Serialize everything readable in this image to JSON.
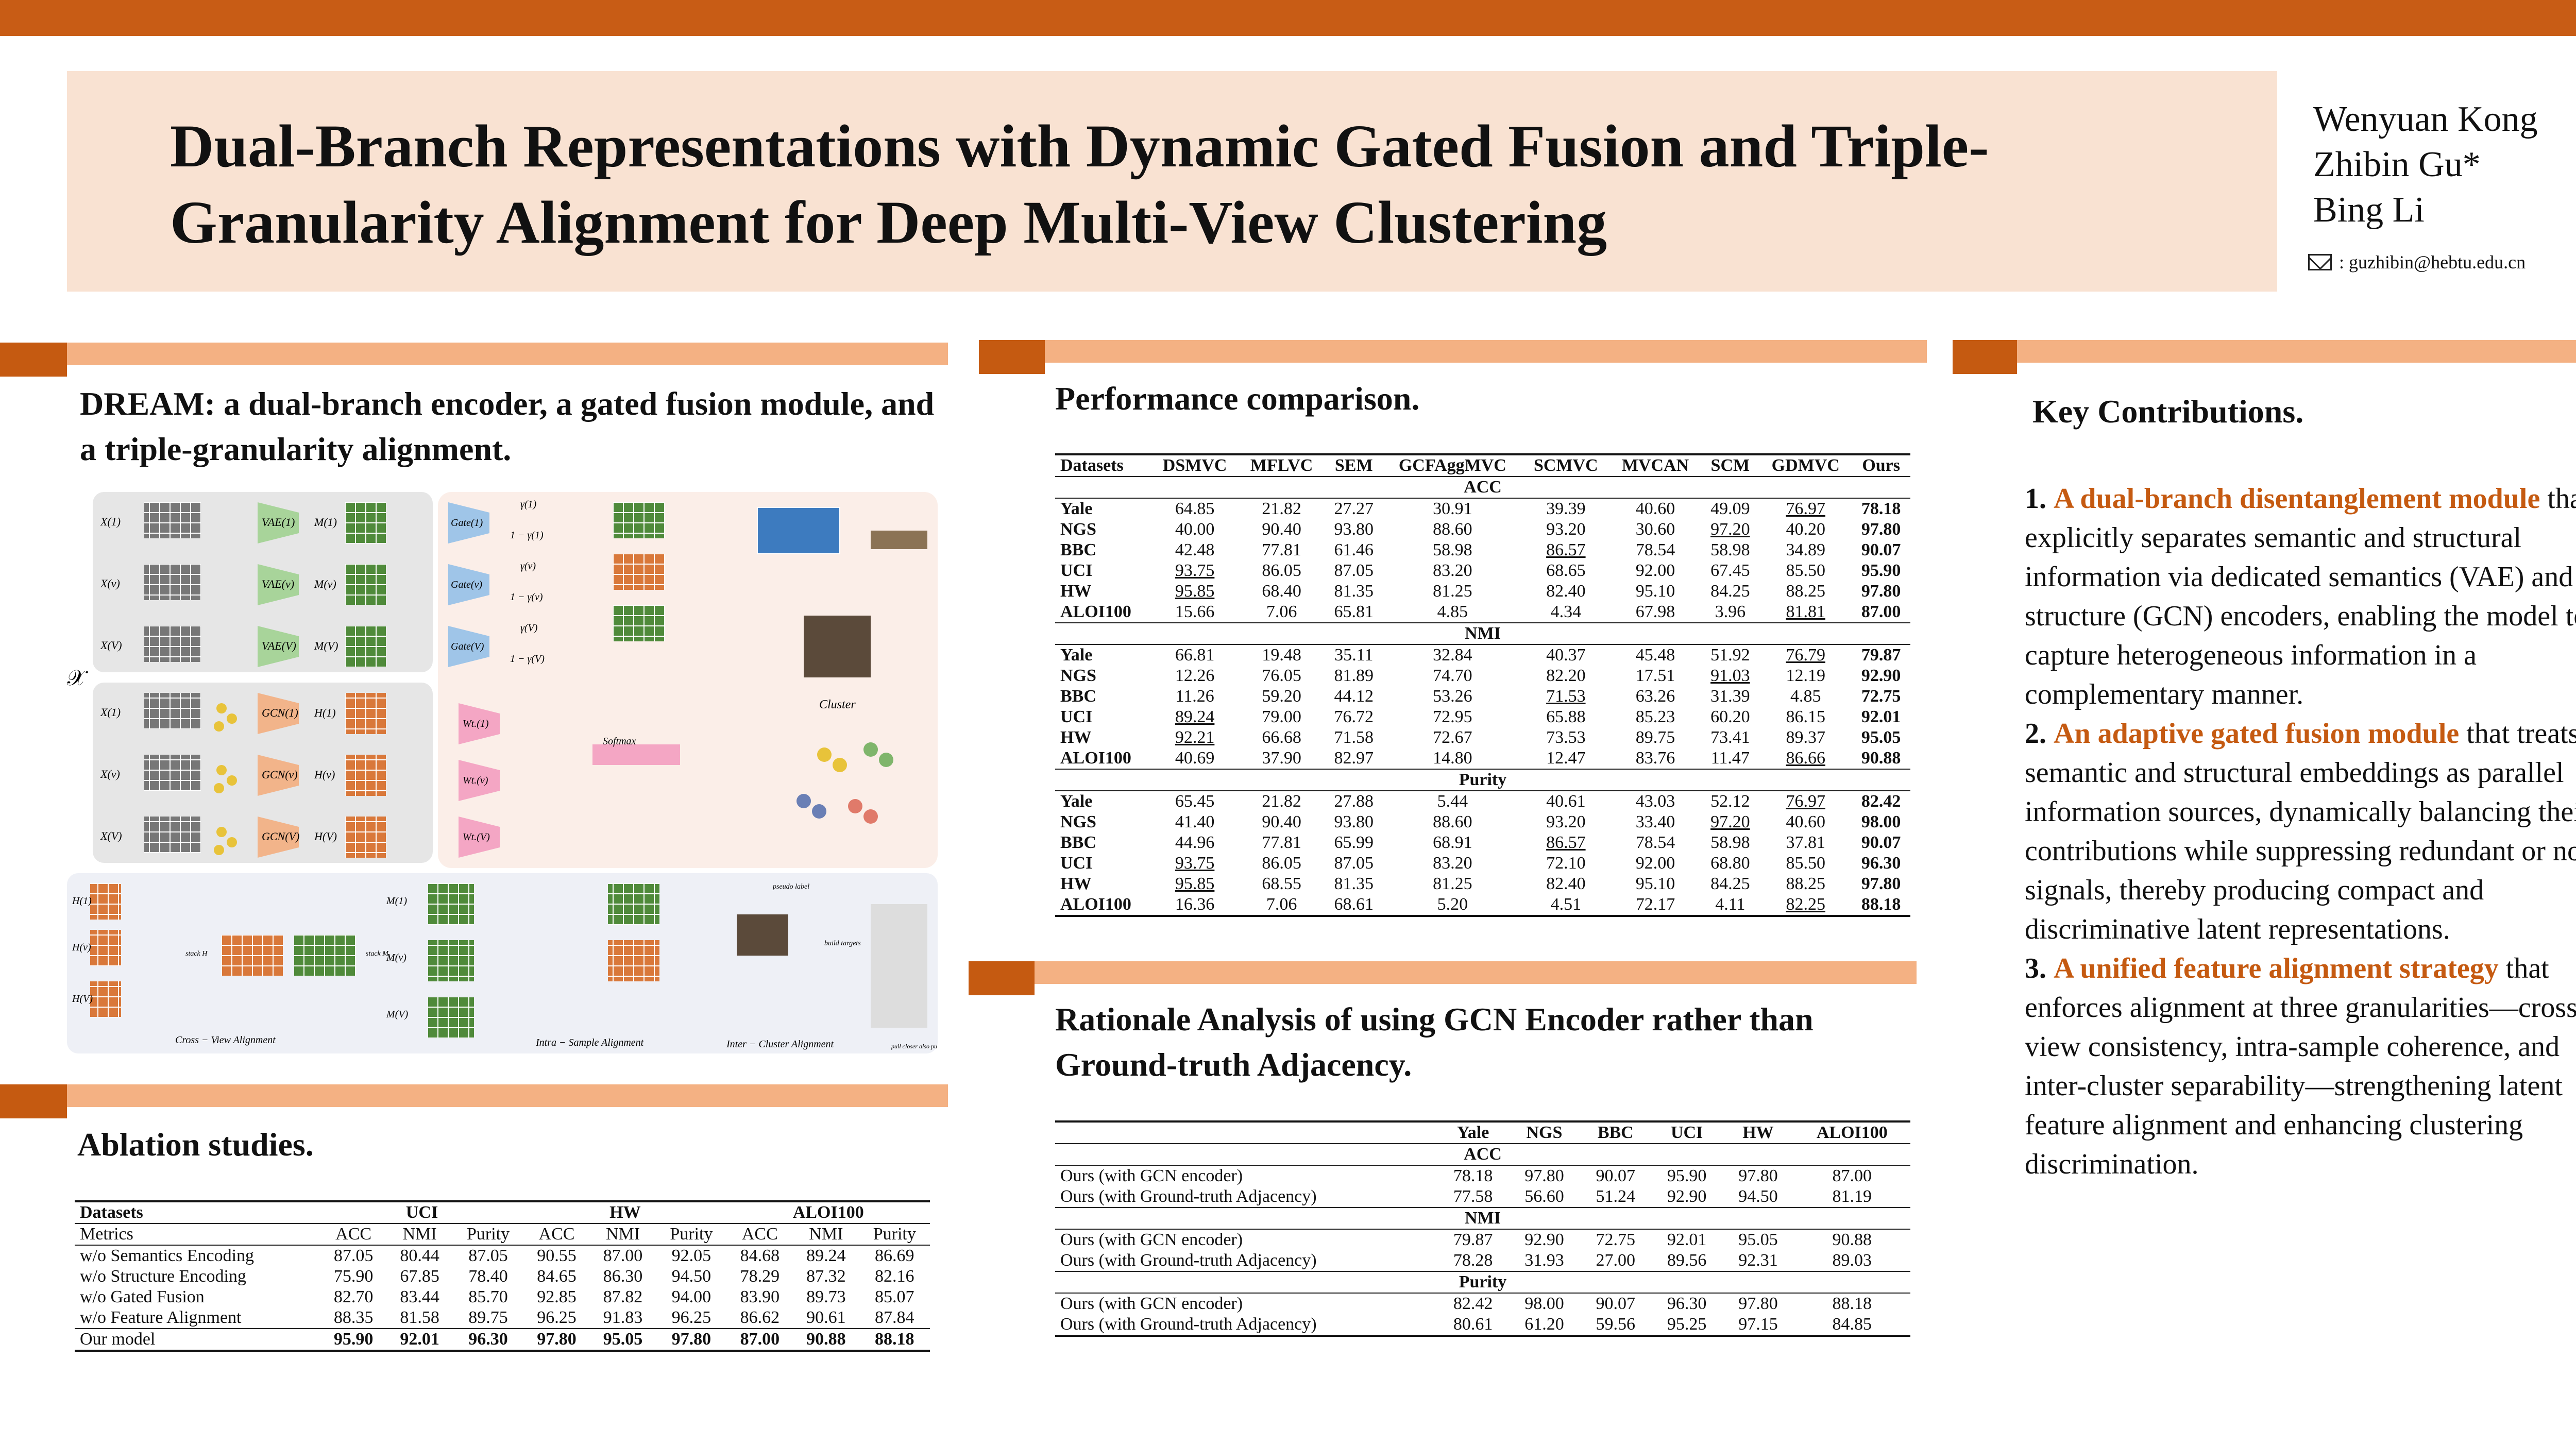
{
  "title": "Dual-Branch Representations with Dynamic Gated Fusion and Triple-Granularity Alignment for Deep Multi-View Clustering",
  "authors": [
    "Wenyuan Kong",
    "Zhibin Gu*",
    "Bing Li"
  ],
  "email": ": guzhibin@hebtu.edu.cn",
  "method": {
    "heading": "DREAM: a dual-branch encoder, a gated fusion module, and a triple-granularity alignment.",
    "figure": {
      "x_label": "𝒳",
      "views": [
        "X(1)",
        "X(v)",
        "X(V)"
      ],
      "vae": [
        "VAE(1)",
        "VAE(v)",
        "VAE(V)"
      ],
      "gcn": [
        "GCN(1)",
        "GCN(v)",
        "GCN(V)"
      ],
      "m": [
        "M(1)",
        "M(v)",
        "M(V)"
      ],
      "h": [
        "H(1)",
        "H(v)",
        "H(V)"
      ],
      "gates": [
        "Gate(1)",
        "Gate(v)",
        "Gate(V)"
      ],
      "wts": [
        "Wt.(1)",
        "Wt.(v)",
        "Wt.(V)"
      ],
      "gamma": [
        "γ(1)",
        "1 − γ(1)",
        "γ(v)",
        "1 − γ(v)",
        "γ(V)",
        "1 − γ(V)"
      ],
      "softmax": "Softmax",
      "cluster": "Cluster",
      "cross_view": "Cross − View Alignment",
      "intra_sample": "Intra − Sample Alignment",
      "inter_cluster": "Inter − Cluster Alignment",
      "pseudo_label": "pseudo label",
      "stack_h": "stack H",
      "stack_m": "stack M",
      "build_targets": "build targets",
      "pull_push": "pull closer also push apart"
    }
  },
  "ablation": {
    "heading": "Ablation studies.",
    "groups": [
      "UCI",
      "HW",
      "ALOI100"
    ],
    "metrics": [
      "ACC",
      "NMI",
      "Purity",
      "ACC",
      "NMI",
      "Purity",
      "ACC",
      "NMI",
      "Purity"
    ],
    "rows": [
      {
        "name": "w/o Semantics Encoding",
        "v": [
          "87.05",
          "80.44",
          "87.05",
          "90.55",
          "87.00",
          "92.05",
          "84.68",
          "89.24",
          "86.69"
        ]
      },
      {
        "name": "w/o Structure Encoding",
        "v": [
          "75.90",
          "67.85",
          "78.40",
          "84.65",
          "86.30",
          "94.50",
          "78.29",
          "87.32",
          "82.16"
        ]
      },
      {
        "name": "w/o Gated Fusion",
        "v": [
          "82.70",
          "83.44",
          "85.70",
          "92.85",
          "87.82",
          "94.00",
          "83.90",
          "89.73",
          "85.07"
        ]
      },
      {
        "name": "w/o Feature Alignment",
        "v": [
          "88.35",
          "81.58",
          "89.75",
          "96.25",
          "91.83",
          "96.25",
          "86.62",
          "90.61",
          "87.84"
        ]
      },
      {
        "name": "Our model",
        "v": [
          "95.90",
          "92.01",
          "96.30",
          "97.80",
          "95.05",
          "97.80",
          "87.00",
          "90.88",
          "88.18"
        ]
      }
    ],
    "col_datasets": "Datasets",
    "col_metrics": "Metrics"
  },
  "performance": {
    "heading": "Performance comparison.",
    "columns": [
      "Datasets",
      "DSMVC",
      "MFLVC",
      "SEM",
      "GCFAggMVC",
      "SCMVC",
      "MVCAN",
      "SCM",
      "GDMVC",
      "Ours"
    ],
    "blocks": [
      {
        "metric": "ACC",
        "rows": [
          [
            "Yale",
            "64.85",
            "21.82",
            "27.27",
            "30.91",
            "39.39",
            "40.60",
            "49.09",
            "76.97",
            "78.18"
          ],
          [
            "NGS",
            "40.00",
            "90.40",
            "93.80",
            "88.60",
            "93.20",
            "30.60",
            "97.20",
            "40.20",
            "97.80"
          ],
          [
            "BBC",
            "42.48",
            "77.81",
            "61.46",
            "58.98",
            "86.57",
            "78.54",
            "58.98",
            "34.89",
            "90.07"
          ],
          [
            "UCI",
            "93.75",
            "86.05",
            "87.05",
            "83.20",
            "68.65",
            "92.00",
            "67.45",
            "85.50",
            "95.90"
          ],
          [
            "HW",
            "95.85",
            "68.40",
            "81.35",
            "81.25",
            "82.40",
            "95.10",
            "84.25",
            "88.25",
            "97.80"
          ],
          [
            "ALOI100",
            "15.66",
            "7.06",
            "65.81",
            "4.85",
            "4.34",
            "67.98",
            "3.96",
            "81.81",
            "87.00"
          ]
        ]
      },
      {
        "metric": "NMI",
        "rows": [
          [
            "Yale",
            "66.81",
            "19.48",
            "35.11",
            "32.84",
            "40.37",
            "45.48",
            "51.92",
            "76.79",
            "79.87"
          ],
          [
            "NGS",
            "12.26",
            "76.05",
            "81.89",
            "74.70",
            "82.20",
            "17.51",
            "91.03",
            "12.19",
            "92.90"
          ],
          [
            "BBC",
            "11.26",
            "59.20",
            "44.12",
            "53.26",
            "71.53",
            "63.26",
            "31.39",
            "4.85",
            "72.75"
          ],
          [
            "UCI",
            "89.24",
            "79.00",
            "76.72",
            "72.95",
            "65.88",
            "85.23",
            "60.20",
            "86.15",
            "92.01"
          ],
          [
            "HW",
            "92.21",
            "66.68",
            "71.58",
            "72.67",
            "73.53",
            "89.75",
            "73.41",
            "89.37",
            "95.05"
          ],
          [
            "ALOI100",
            "40.69",
            "37.90",
            "82.97",
            "14.80",
            "12.47",
            "83.76",
            "11.47",
            "86.66",
            "90.88"
          ]
        ]
      },
      {
        "metric": "Purity",
        "rows": [
          [
            "Yale",
            "65.45",
            "21.82",
            "27.88",
            "5.44",
            "40.61",
            "43.03",
            "52.12",
            "76.97",
            "82.42"
          ],
          [
            "NGS",
            "41.40",
            "90.40",
            "93.80",
            "88.60",
            "93.20",
            "33.40",
            "97.20",
            "40.60",
            "98.00"
          ],
          [
            "BBC",
            "44.96",
            "77.81",
            "65.99",
            "68.91",
            "86.57",
            "78.54",
            "58.98",
            "37.81",
            "90.07"
          ],
          [
            "UCI",
            "93.75",
            "86.05",
            "87.05",
            "83.20",
            "72.10",
            "92.00",
            "68.80",
            "85.50",
            "96.30"
          ],
          [
            "HW",
            "95.85",
            "68.55",
            "81.35",
            "81.25",
            "82.40",
            "95.10",
            "84.25",
            "88.25",
            "97.80"
          ],
          [
            "ALOI100",
            "16.36",
            "7.06",
            "68.61",
            "5.20",
            "4.51",
            "72.17",
            "4.11",
            "82.25",
            "88.18"
          ]
        ]
      }
    ]
  },
  "rationale": {
    "heading": "Rationale Analysis of using GCN Encoder rather than Ground-truth Adjacency.",
    "columns": [
      "Yale",
      "NGS",
      "BBC",
      "UCI",
      "HW",
      "ALOI100"
    ],
    "blocks": [
      {
        "metric": "ACC",
        "rows": [
          {
            "name": "Ours (with GCN encoder)",
            "v": [
              "78.18",
              "97.80",
              "90.07",
              "95.90",
              "97.80",
              "87.00"
            ]
          },
          {
            "name": "Ours (with Ground-truth Adjacency)",
            "v": [
              "77.58",
              "56.60",
              "51.24",
              "92.90",
              "94.50",
              "81.19"
            ]
          }
        ]
      },
      {
        "metric": "NMI",
        "rows": [
          {
            "name": "Ours (with GCN encoder)",
            "v": [
              "79.87",
              "92.90",
              "72.75",
              "92.01",
              "95.05",
              "90.88"
            ]
          },
          {
            "name": "Ours (with Ground-truth Adjacency)",
            "v": [
              "78.28",
              "31.93",
              "27.00",
              "89.56",
              "92.31",
              "89.03"
            ]
          }
        ]
      },
      {
        "metric": "Purity",
        "rows": [
          {
            "name": "Ours (with GCN encoder)",
            "v": [
              "82.42",
              "98.00",
              "90.07",
              "96.30",
              "97.80",
              "88.18"
            ]
          },
          {
            "name": "Ours (with Ground-truth Adjacency)",
            "v": [
              "80.61",
              "61.20",
              "59.56",
              "95.25",
              "97.15",
              "84.85"
            ]
          }
        ]
      }
    ]
  },
  "contributions": {
    "heading": "Key Contributions.",
    "items": [
      {
        "num": "1.",
        "highlight": "A dual-branch disentanglement module",
        "text": "that explicitly separates semantic and structural information via dedicated semantics (VAE) and structure (GCN) encoders, enabling the model to capture heterogeneous information in a complementary manner."
      },
      {
        "num": "2.",
        "highlight": "An adaptive gated fusion module",
        "text": "that treats semantic and structural embeddings as parallel information sources, dynamically balancing their contributions while suppressing redundant or noisy signals, thereby producing compact and discriminative latent representations."
      },
      {
        "num": "3.",
        "highlight": "A unified feature alignment strategy",
        "text": "that enforces alignment at three granularities—cross-view consistency, intra-sample coherence, and inter-cluster separability—strengthening latent feature alignment and enhancing clustering discrimination."
      }
    ]
  }
}
